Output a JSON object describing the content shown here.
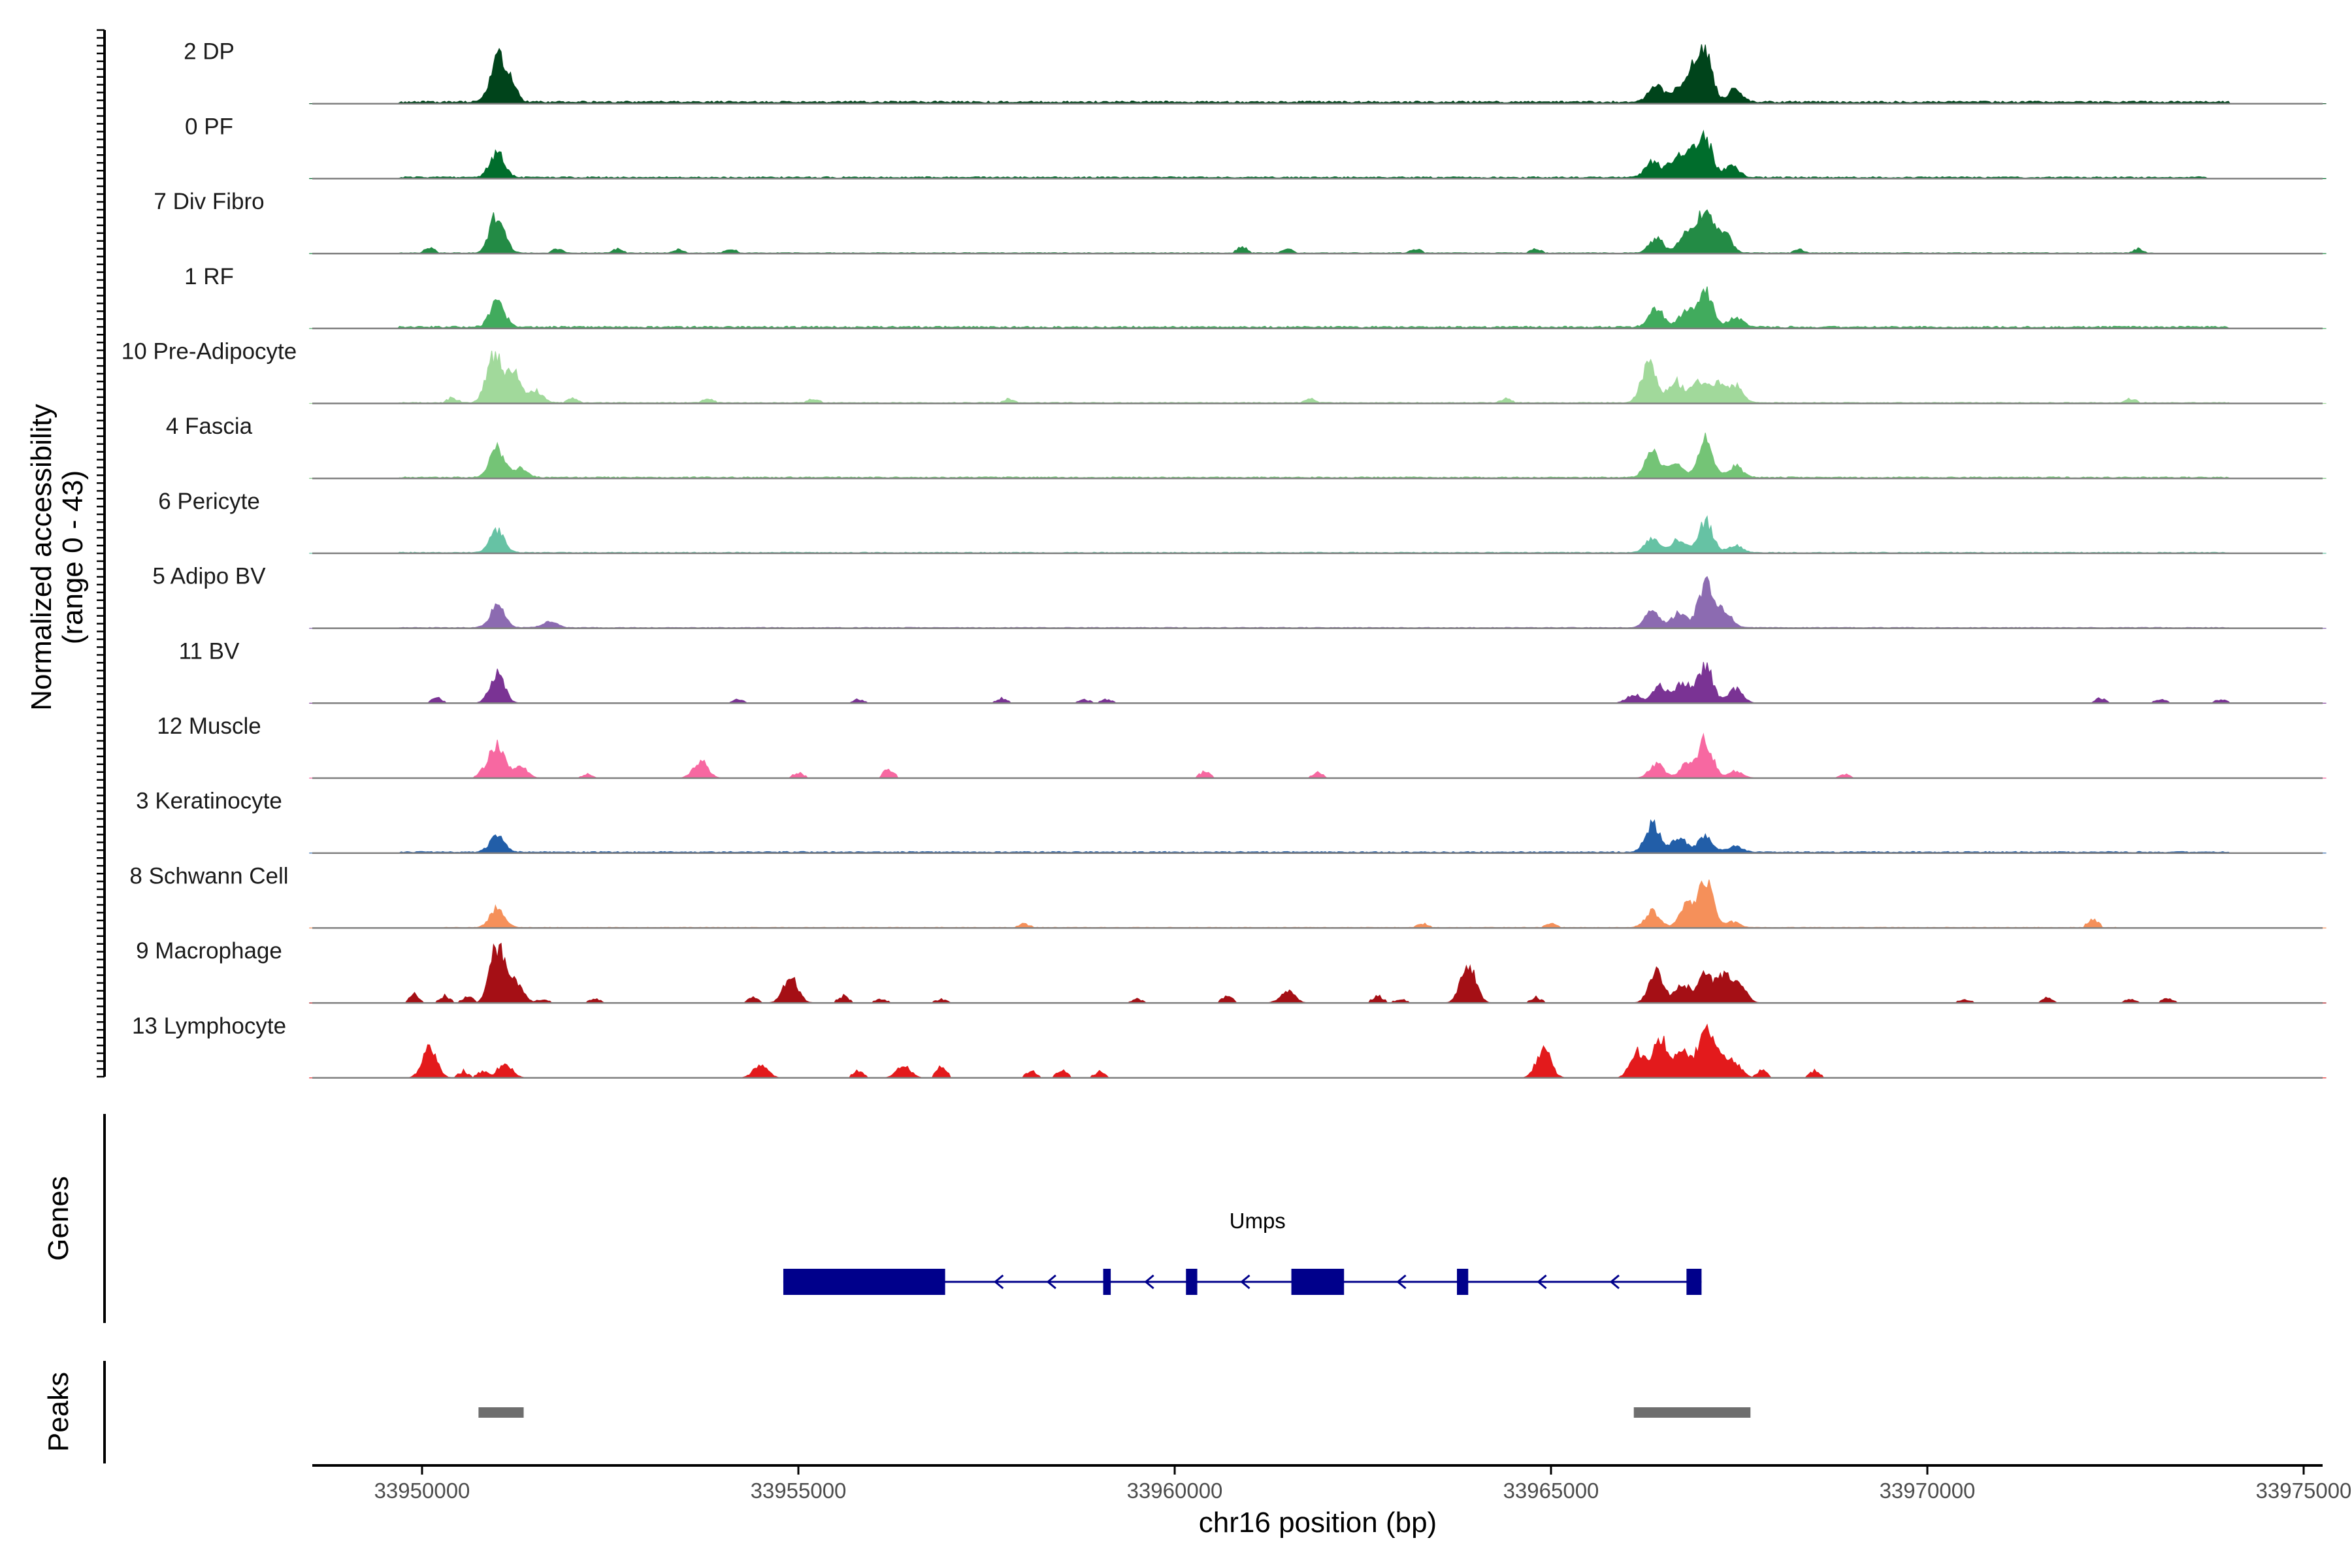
{
  "chart_data": {
    "type": "area",
    "ylabel": "Normalized accessibility",
    "ylabel_range": "(range 0 - 43)",
    "ylim": [
      0,
      43
    ],
    "xlabel": "chr16 position (bp)",
    "xlim": [
      33948500,
      33975300
    ],
    "x_ticks": [
      33950000,
      33955000,
      33960000,
      33965000,
      33970000,
      33975000
    ],
    "x_tick_labels": [
      "33950000",
      "33955000",
      "33960000",
      "33965000",
      "33970000",
      "33975000"
    ],
    "grid": false,
    "legend": "none",
    "series": [
      {
        "name": "2 DP",
        "color": "#00441b",
        "baseline_range": [
          33949700,
          33974000
        ],
        "baseline_level": 1.4,
        "peaks": [
          [
            33951000,
            28
          ],
          [
            33951150,
            14
          ],
          [
            33966400,
            12
          ],
          [
            33966700,
            9
          ],
          [
            33967050,
            31
          ],
          [
            33966900,
            18
          ],
          [
            33967450,
            9
          ]
        ],
        "islands": []
      },
      {
        "name": "0 PF",
        "color": "#006d2c",
        "baseline_range": [
          33949700,
          33973700
        ],
        "baseline_level": 1.0,
        "peaks": [
          [
            33951000,
            18
          ],
          [
            33966350,
            11
          ],
          [
            33966650,
            13
          ],
          [
            33967050,
            27
          ],
          [
            33966850,
            15
          ],
          [
            33967400,
            8
          ]
        ],
        "islands": []
      },
      {
        "name": "7 Div Fibro",
        "color": "#238b45",
        "baseline_range": [
          33949700,
          33973000
        ],
        "baseline_level": 0.5,
        "peaks": [
          [
            33951000,
            27
          ],
          [
            33966400,
            10
          ],
          [
            33966800,
            14
          ],
          [
            33967050,
            32
          ],
          [
            33967300,
            14
          ]
        ],
        "islands": [
          [
            33950100,
            4
          ],
          [
            33951800,
            3
          ],
          [
            33952600,
            3
          ],
          [
            33953400,
            3
          ],
          [
            33954100,
            3
          ],
          [
            33960900,
            5
          ],
          [
            33961500,
            3
          ],
          [
            33963200,
            3
          ],
          [
            33964800,
            3
          ],
          [
            33968300,
            3
          ],
          [
            33972800,
            3
          ]
        ]
      },
      {
        "name": "1 RF",
        "color": "#41ab5d",
        "baseline_range": [
          33949700,
          33974000
        ],
        "baseline_level": 1.2,
        "peaks": [
          [
            33951000,
            18
          ],
          [
            33966400,
            13
          ],
          [
            33966800,
            11
          ],
          [
            33967050,
            24
          ],
          [
            33967450,
            7
          ]
        ],
        "islands": []
      },
      {
        "name": "10 Pre-Adipocyte",
        "color": "#a1d99b",
        "baseline_range": [
          33949700,
          33974000
        ],
        "baseline_level": 0.6,
        "peaks": [
          [
            33950950,
            34
          ],
          [
            33951200,
            22
          ],
          [
            33951500,
            9
          ],
          [
            33966300,
            28
          ],
          [
            33966650,
            15
          ],
          [
            33966950,
            16
          ],
          [
            33967200,
            14
          ],
          [
            33967450,
            12
          ]
        ],
        "islands": [
          [
            33950400,
            4
          ],
          [
            33952000,
            3
          ],
          [
            33953800,
            3
          ],
          [
            33955200,
            3
          ],
          [
            33957800,
            3
          ],
          [
            33961800,
            3
          ],
          [
            33964400,
            3
          ],
          [
            33972700,
            3
          ]
        ]
      },
      {
        "name": "4 Fascia",
        "color": "#74c476",
        "baseline_range": [
          33949700,
          33974000
        ],
        "baseline_level": 0.8,
        "peaks": [
          [
            33951000,
            20
          ],
          [
            33951300,
            6
          ],
          [
            33966350,
            17
          ],
          [
            33966650,
            11
          ],
          [
            33967050,
            26
          ],
          [
            33967450,
            8
          ]
        ],
        "islands": []
      },
      {
        "name": "6 Pericyte",
        "color": "#66c2a4",
        "baseline_range": [
          33949700,
          33974000
        ],
        "baseline_level": 0.6,
        "peaks": [
          [
            33951000,
            15
          ],
          [
            33966350,
            10
          ],
          [
            33966700,
            9
          ],
          [
            33967050,
            22
          ],
          [
            33967450,
            5
          ]
        ],
        "islands": []
      },
      {
        "name": "5 Adipo BV",
        "color": "#8c6bb1",
        "baseline_range": [
          33949700,
          33974000
        ],
        "baseline_level": 0.5,
        "peaks": [
          [
            33951000,
            15
          ],
          [
            33951700,
            4
          ],
          [
            33966350,
            12
          ],
          [
            33966700,
            10
          ],
          [
            33967050,
            30
          ],
          [
            33967300,
            12
          ]
        ],
        "islands": []
      },
      {
        "name": "11 BV",
        "color": "#7a3394",
        "baseline_range": [
          33950000,
          33974000
        ],
        "baseline_level": 0.0,
        "peaks": [
          [
            33951000,
            20
          ],
          [
            33966100,
            6
          ],
          [
            33966450,
            12
          ],
          [
            33966750,
            15
          ],
          [
            33967050,
            27
          ],
          [
            33967450,
            10
          ]
        ],
        "islands": [
          [
            33950200,
            4
          ],
          [
            33954200,
            3
          ],
          [
            33955800,
            3
          ],
          [
            33957700,
            4
          ],
          [
            33958800,
            3
          ],
          [
            33959100,
            3
          ],
          [
            33972300,
            4
          ],
          [
            33973100,
            3
          ],
          [
            33973900,
            3
          ]
        ]
      },
      {
        "name": "12 Muscle",
        "color": "#f768a1",
        "baseline_range": [
          33949800,
          33969000
        ],
        "baseline_level": 0.0,
        "peaks": [
          [
            33951000,
            25
          ],
          [
            33951300,
            8
          ],
          [
            33953700,
            12
          ],
          [
            33966400,
            10
          ],
          [
            33966800,
            9
          ],
          [
            33967050,
            26
          ],
          [
            33967450,
            5
          ]
        ],
        "islands": [
          [
            33950800,
            4
          ],
          [
            33952200,
            3
          ],
          [
            33955000,
            4
          ],
          [
            33956200,
            7
          ],
          [
            33960400,
            5
          ],
          [
            33961900,
            4
          ],
          [
            33968900,
            3
          ]
        ]
      },
      {
        "name": "3 Keratinocyte",
        "color": "#225ea8",
        "baseline_range": [
          33949700,
          33974000
        ],
        "baseline_level": 0.8,
        "peaks": [
          [
            33951000,
            11
          ],
          [
            33966350,
            19
          ],
          [
            33966700,
            10
          ],
          [
            33967050,
            11
          ],
          [
            33967450,
            4
          ]
        ],
        "islands": []
      },
      {
        "name": "8 Schwann Cell",
        "color": "#f5905a",
        "baseline_range": [
          33950300,
          33972500
        ],
        "baseline_level": 0.4,
        "peaks": [
          [
            33951000,
            14
          ],
          [
            33966350,
            11
          ],
          [
            33967050,
            33
          ],
          [
            33966800,
            15
          ],
          [
            33967400,
            4
          ]
        ],
        "islands": [
          [
            33958000,
            3
          ],
          [
            33963300,
            3
          ],
          [
            33965000,
            3
          ],
          [
            33972200,
            6
          ]
        ]
      },
      {
        "name": "9 Macrophage",
        "color": "#a50f15",
        "baseline_range": [
          33949800,
          33973300
        ],
        "baseline_level": 0.0,
        "peaks": [
          [
            33951000,
            40
          ],
          [
            33951250,
            15
          ],
          [
            33954900,
            18
          ],
          [
            33961500,
            8
          ],
          [
            33963900,
            29
          ],
          [
            33966400,
            22
          ],
          [
            33966750,
            13
          ],
          [
            33967050,
            20
          ],
          [
            33967300,
            18
          ],
          [
            33967500,
            12
          ]
        ],
        "islands": [
          [
            33949900,
            6
          ],
          [
            33950300,
            5
          ],
          [
            33950600,
            5
          ],
          [
            33951600,
            3
          ],
          [
            33952300,
            3
          ],
          [
            33954400,
            4
          ],
          [
            33955600,
            5
          ],
          [
            33956100,
            3
          ],
          [
            33956900,
            3
          ],
          [
            33959500,
            3
          ],
          [
            33960700,
            5
          ],
          [
            33962700,
            6
          ],
          [
            33963000,
            3
          ],
          [
            33964800,
            4
          ],
          [
            33970500,
            3
          ],
          [
            33971600,
            4
          ],
          [
            33972700,
            3
          ],
          [
            33973200,
            4
          ]
        ]
      },
      {
        "name": "13 Lymphocyte",
        "color": "#e31a1c",
        "baseline_range": [
          33950000,
          33968500
        ],
        "baseline_level": 0.0,
        "peaks": [
          [
            33950100,
            20
          ],
          [
            33951100,
            10
          ],
          [
            33954500,
            9
          ],
          [
            33956400,
            8
          ],
          [
            33964900,
            20
          ],
          [
            33966150,
            18
          ],
          [
            33966450,
            28
          ],
          [
            33966750,
            20
          ],
          [
            33967050,
            35
          ],
          [
            33967250,
            14
          ],
          [
            33967450,
            9
          ]
        ],
        "islands": [
          [
            33950550,
            5
          ],
          [
            33950800,
            5
          ],
          [
            33955800,
            6
          ],
          [
            33956900,
            10
          ],
          [
            33958100,
            5
          ],
          [
            33958500,
            6
          ],
          [
            33959000,
            5
          ],
          [
            33967800,
            6
          ],
          [
            33968500,
            5
          ]
        ]
      }
    ],
    "genes": [
      {
        "name": "Umps",
        "strand": "-",
        "start": 33954800,
        "end": 33967000,
        "exons": [
          [
            33954800,
            33956950
          ],
          [
            33959050,
            33959150
          ],
          [
            33960150,
            33960300
          ],
          [
            33961550,
            33962250
          ],
          [
            33963750,
            33963900
          ],
          [
            33966800,
            33967000
          ]
        ]
      }
    ],
    "peaks_track": [
      [
        33950750,
        33951350
      ],
      [
        33966100,
        33967650
      ]
    ],
    "panel_labels": {
      "genes": "Genes",
      "peaks": "Peaks"
    },
    "colors": {
      "gene": "#00008b",
      "peak_region": "#6e6e6e",
      "baseline": "#7f7f7f",
      "axis": "#000000"
    }
  }
}
